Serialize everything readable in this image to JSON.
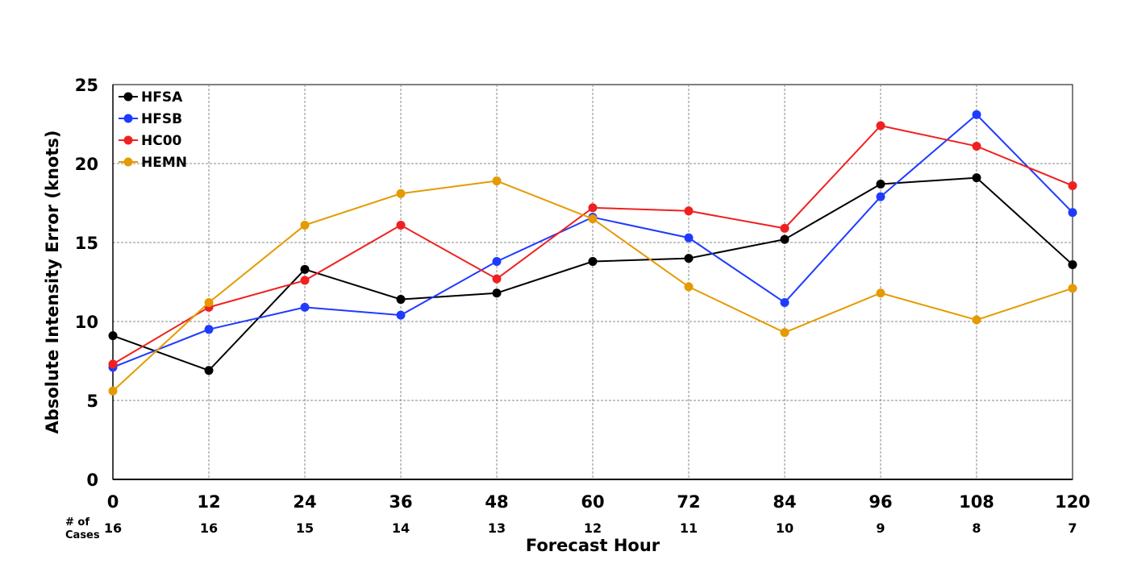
{
  "chart_data": {
    "type": "line",
    "xlabel": "Forecast Hour",
    "ylabel": "Absolute Intensity Error (knots)",
    "x": [
      0,
      12,
      24,
      36,
      48,
      60,
      72,
      84,
      96,
      108,
      120
    ],
    "x_tick_labels": [
      "0",
      "12",
      "24",
      "36",
      "48",
      "60",
      "72",
      "84",
      "96",
      "108",
      "120"
    ],
    "y_ticks": [
      0,
      5,
      10,
      15,
      20,
      25
    ],
    "y_tick_labels": [
      "0",
      "5",
      "10",
      "15",
      "20",
      "25"
    ],
    "xlim": [
      0,
      120
    ],
    "ylim": [
      0,
      25
    ],
    "grid": true,
    "legend_position": "top-left",
    "cases_label_line1": "# of",
    "cases_label_line2": "Cases",
    "cases": [
      "16",
      "16",
      "15",
      "14",
      "13",
      "12",
      "11",
      "10",
      "9",
      "8",
      "7"
    ],
    "series": [
      {
        "name": "HFSA",
        "color": "#000000",
        "values": [
          9.1,
          6.9,
          13.3,
          11.4,
          11.8,
          13.8,
          14.0,
          15.2,
          18.7,
          19.1,
          13.6
        ]
      },
      {
        "name": "HFSB",
        "color": "#1f3bff",
        "values": [
          7.1,
          9.5,
          10.9,
          10.4,
          13.8,
          16.6,
          15.3,
          11.2,
          17.9,
          23.1,
          16.9
        ]
      },
      {
        "name": "HC00",
        "color": "#f02020",
        "values": [
          7.3,
          10.9,
          12.6,
          16.1,
          12.7,
          17.2,
          17.0,
          15.9,
          22.4,
          21.1,
          18.6
        ]
      },
      {
        "name": "HEMN",
        "color": "#e59a00",
        "values": [
          5.6,
          11.2,
          16.1,
          18.1,
          18.9,
          16.5,
          12.2,
          9.3,
          11.8,
          10.1,
          12.1
        ]
      }
    ]
  }
}
